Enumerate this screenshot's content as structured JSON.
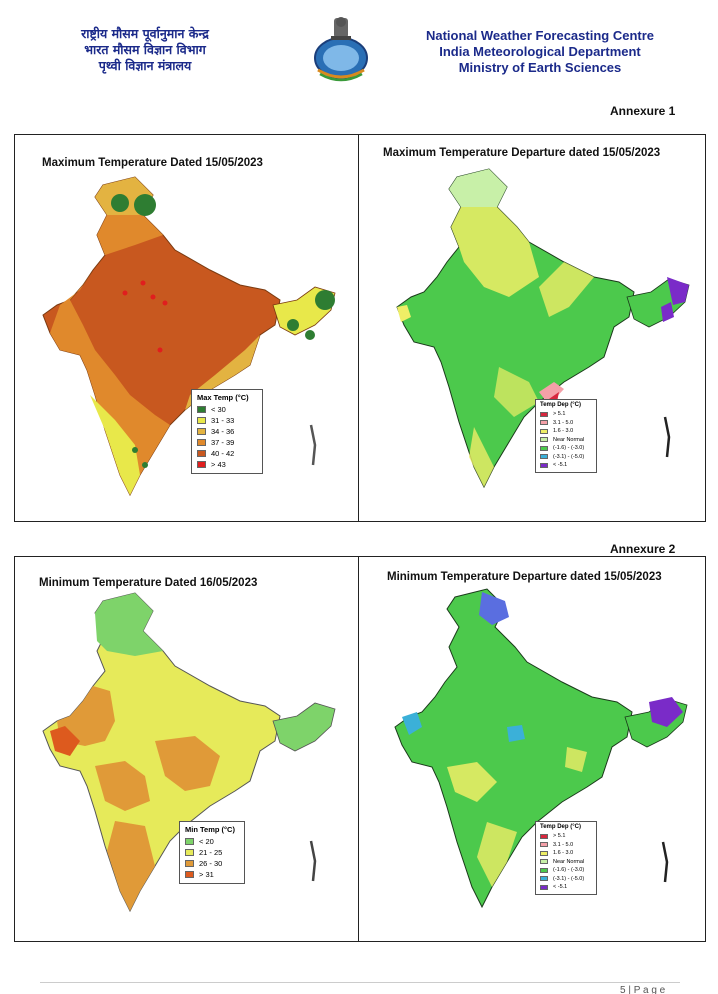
{
  "header": {
    "hindi_lines": [
      "राष्ट्रीय मौसम पूर्वानुमान केन्द्र",
      "भारत मौसम विज्ञान विभाग",
      "पृथ्वी विज्ञान मंत्रालय"
    ],
    "english_lines": [
      "National Weather Forecasting Centre",
      "India Meteorological Department",
      "Ministry of Earth Sciences"
    ]
  },
  "annexures": [
    "Annexure 1",
    "Annexure 2"
  ],
  "maps": {
    "max_temp": {
      "title": "Maximum Temperature Dated 15/05/2023",
      "legend_title": "Max Temp (°C)",
      "legend": [
        {
          "label": "< 30",
          "color": "#2e7d32"
        },
        {
          "label": "31 - 33",
          "color": "#e8e84a"
        },
        {
          "label": "34 - 36",
          "color": "#e3b341"
        },
        {
          "label": "37 - 39",
          "color": "#e0892c"
        },
        {
          "label": "40 - 42",
          "color": "#c8581f"
        },
        {
          "label": "> 43",
          "color": "#e01e1e"
        }
      ]
    },
    "max_dep": {
      "title": "Maximum Temperature Departure dated 15/05/2023",
      "legend_title": "Temp Dep (°C)",
      "legend": [
        {
          "label": "> 5.1",
          "color": "#d7263d"
        },
        {
          "label": "3.1 - 5.0",
          "color": "#f4a0a8"
        },
        {
          "label": "1.6 - 3.0",
          "color": "#eeee66"
        },
        {
          "label": "Near Normal",
          "color": "#c8f0a8"
        },
        {
          "label": "(-1.6) - (-3.0)",
          "color": "#4cc94c"
        },
        {
          "label": "(-3.1) - (-5.0)",
          "color": "#3bb0d8"
        },
        {
          "label": "< -5.1",
          "color": "#7a2bc8"
        }
      ]
    },
    "min_temp": {
      "title": "Minimum Temperature Dated 16/05/2023",
      "legend_title": "Min Temp (°C)",
      "legend": [
        {
          "label": "< 20",
          "color": "#7ed36a"
        },
        {
          "label": "21 - 25",
          "color": "#e6ea5a"
        },
        {
          "label": "26 - 30",
          "color": "#e09a38"
        },
        {
          "label": "> 31",
          "color": "#dd5a1e"
        }
      ]
    },
    "min_dep": {
      "title": "Minimum Temperature Departure dated 15/05/2023",
      "legend_title": "Temp Dep (°C)",
      "legend": [
        {
          "label": "> 5.1",
          "color": "#d7263d"
        },
        {
          "label": "3.1 - 5.0",
          "color": "#f4a0a8"
        },
        {
          "label": "1.6 - 3.0",
          "color": "#eeee66"
        },
        {
          "label": "Near Normal",
          "color": "#c8f0a8"
        },
        {
          "label": "(-1.6) - (-3.0)",
          "color": "#4cc94c"
        },
        {
          "label": "(-3.1) - (-5.0)",
          "color": "#3bb0d8"
        },
        {
          "label": "< -5.1",
          "color": "#7a2bc8"
        }
      ]
    }
  },
  "footer": {
    "page_label": "5 | P a g e"
  }
}
